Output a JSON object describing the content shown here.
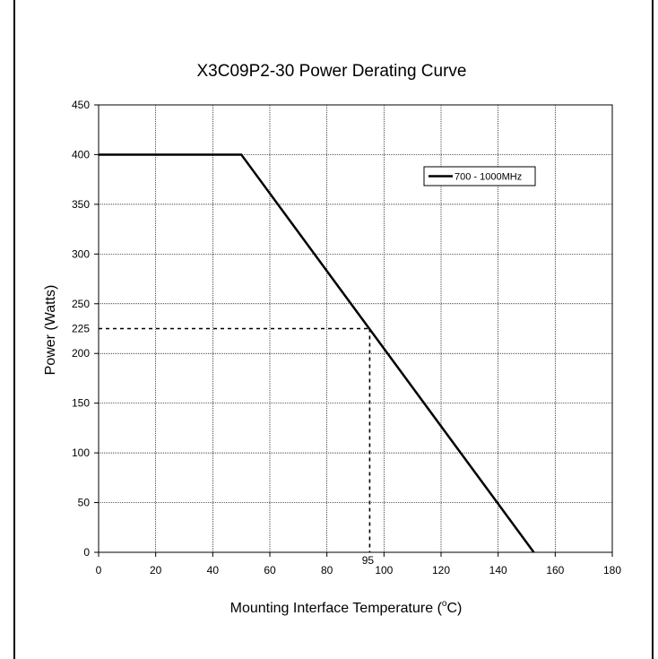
{
  "chart_data": {
    "type": "line",
    "title": "X3C09P2-30 Power Derating Curve",
    "xlabel_prefix": "Mounting Interface Temperature (",
    "xlabel_sup": "o",
    "xlabel_suffix": "C)",
    "ylabel": "Power (Watts)",
    "xlim": [
      0,
      180
    ],
    "ylim": [
      0,
      450
    ],
    "xticks": [
      0,
      20,
      40,
      60,
      80,
      100,
      120,
      140,
      160,
      180
    ],
    "yticks": [
      0,
      50,
      100,
      150,
      200,
      250,
      300,
      350,
      400,
      450
    ],
    "grid": true,
    "legend_position": "top-right",
    "series": [
      {
        "name": "700 - 1000MHz",
        "x": [
          0,
          50,
          152.5
        ],
        "y": [
          400,
          400,
          0
        ],
        "color": "#000000"
      }
    ],
    "annotations": {
      "point": {
        "x": 95,
        "y": 225
      },
      "x_label": "95",
      "y_label": "225"
    }
  }
}
